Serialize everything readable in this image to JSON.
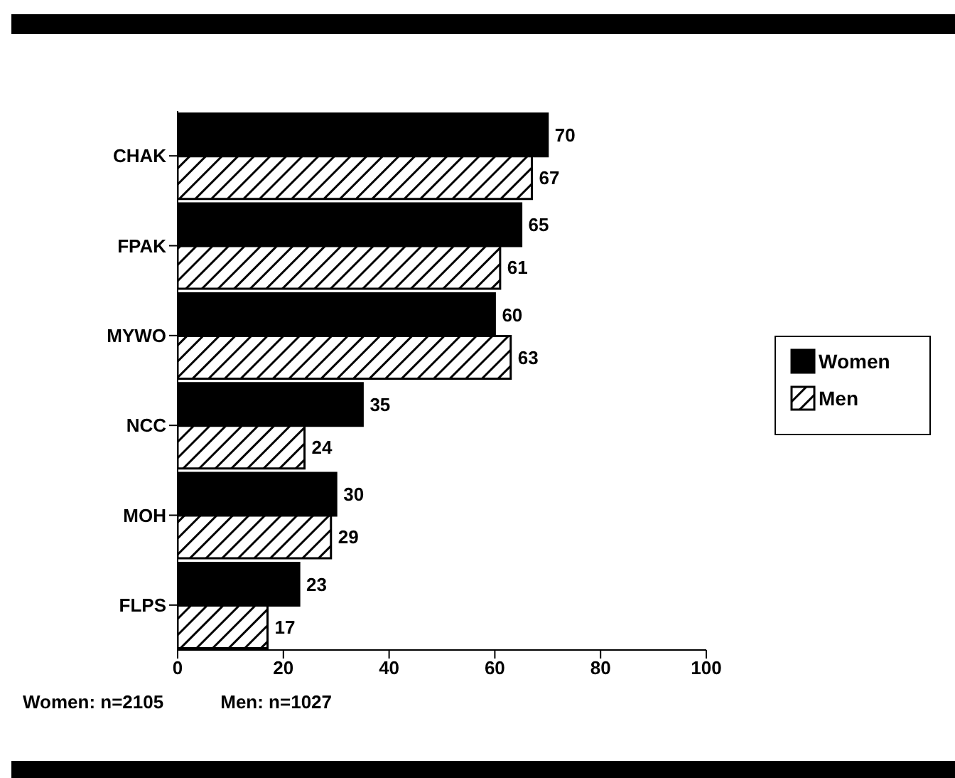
{
  "chart_data": {
    "type": "bar",
    "orientation": "horizontal",
    "categories": [
      "CHAK",
      "FPAK",
      "MYWO",
      "NCC",
      "MOH",
      "FLPS"
    ],
    "series": [
      {
        "name": "Women",
        "color": "#000000",
        "values": [
          70,
          65,
          60,
          35,
          30,
          23
        ]
      },
      {
        "name": "Men",
        "color": "#000000",
        "values": [
          67,
          61,
          63,
          24,
          29,
          17
        ]
      }
    ],
    "xlim": [
      0,
      100
    ],
    "xticks": [
      0,
      20,
      40,
      60,
      80,
      100
    ],
    "data_labels": true,
    "legend": "right",
    "grid": false,
    "annotations": [
      "Women: n=2105",
      "Men: n=1027"
    ]
  }
}
